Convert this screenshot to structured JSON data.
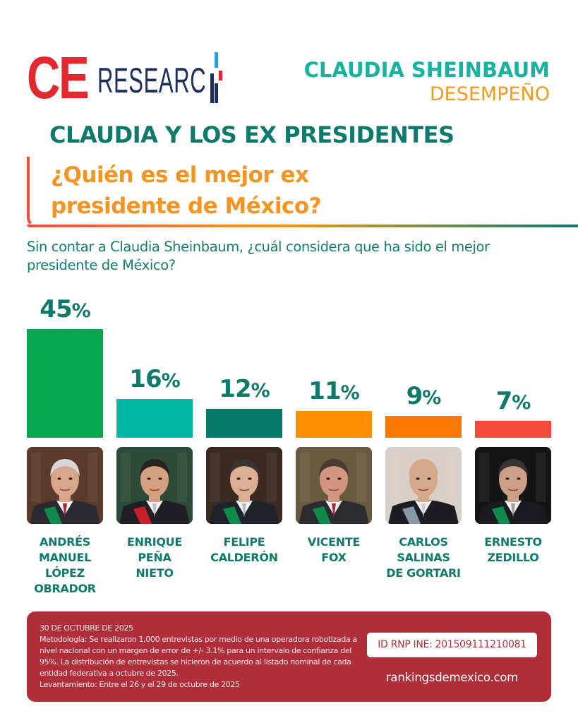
{
  "logo": {
    "part1": "CE",
    "part2": "RESEARC",
    "colors": {
      "ce": "#e02a2f",
      "research": "#1f2f5c",
      "bar_blue": "#2a9fd8",
      "bar_red": "#e02a2f"
    }
  },
  "header": {
    "title": "CLAUDIA SHEINBAUM",
    "subtitle": "DESEMPEÑO"
  },
  "section": {
    "title": "CLAUDIA Y LOS EX PRESIDENTES",
    "question_line1": "¿Quién es el mejor ex",
    "question_line2": "presidente de México?"
  },
  "prompt": "Sin contar a Claudia Sheinbaum, ¿cuál considera que ha sido el mejor presidente de México?",
  "chart_data": {
    "type": "bar",
    "title": "¿Quién es el mejor ex presidente de México?",
    "xlabel": "",
    "ylabel": "",
    "ylim": [
      0,
      45
    ],
    "unit": "%",
    "categories": [
      "ANDRÉS MANUEL LÓPEZ OBRADOR",
      "ENRIQUE PEÑA NIETO",
      "FELIPE CALDERÓN",
      "VICENTE FOX",
      "CARLOS SALINAS DE GORTARI",
      "ERNESTO ZEDILLO"
    ],
    "values": [
      45,
      16,
      12,
      11,
      9,
      7
    ],
    "colors": [
      "#06a54f",
      "#00b7a4",
      "#077a6c",
      "#fd8f00",
      "#fd7a00",
      "#f34a3c"
    ]
  },
  "candidates": [
    {
      "name_lines": [
        "ANDRÉS",
        "MANUEL",
        "LÓPEZ",
        "OBRADOR"
      ],
      "value_num": "45",
      "value_unit": "%",
      "photo": "portrait-amlo"
    },
    {
      "name_lines": [
        "ENRIQUE",
        "PEÑA",
        "NIETO"
      ],
      "value_num": "16",
      "value_unit": "%",
      "photo": "portrait-epn"
    },
    {
      "name_lines": [
        "FELIPE",
        "CALDERÓN"
      ],
      "value_num": "12",
      "value_unit": "%",
      "photo": "portrait-calderon"
    },
    {
      "name_lines": [
        "VICENTE",
        "FOX"
      ],
      "value_num": "11",
      "value_unit": "%",
      "photo": "portrait-fox"
    },
    {
      "name_lines": [
        "CARLOS",
        "SALINAS",
        "DE GORTARI"
      ],
      "value_num": "9",
      "value_unit": "%",
      "photo": "portrait-salinas"
    },
    {
      "name_lines": [
        "ERNESTO",
        "ZEDILLO"
      ],
      "value_num": "7",
      "value_unit": "%",
      "photo": "portrait-zedillo"
    }
  ],
  "footer": {
    "date": "30 DE OCTUBRE DE 2025",
    "methodology": "Metodología: Se realizaron 1,000 entrevistas por medio de una operadora robotizada a nivel nacional con un margen de error de +/- 3.1% para un intervalo de confianza del 95%. La distribución de entrevistas se hicieron de acuerdo al listado nominal de cada entidad federativa a octubre de 2025.",
    "fieldwork": "Levantamiento: Entre el 26 y el 29 de octubre de 2025",
    "rnp_id": "ID RNP INE: 201509111210081",
    "website": "rankingsdemexico.com"
  }
}
